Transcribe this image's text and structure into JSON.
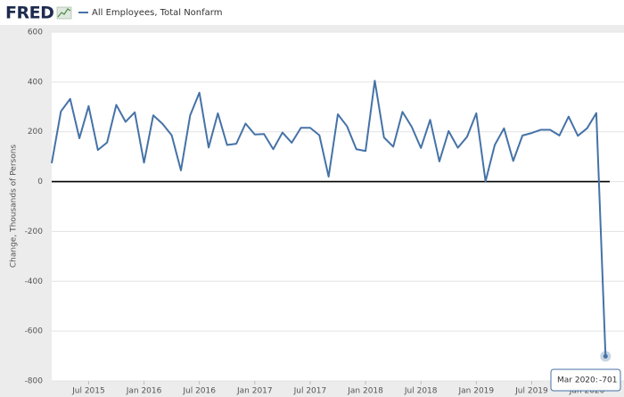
{
  "logo": "FRED",
  "chart_data": {
    "type": "line",
    "y_label": "Change, Thousands of Persons",
    "x": [
      "2015-03",
      "2015-04",
      "2015-05",
      "2015-06",
      "2015-07",
      "2015-08",
      "2015-09",
      "2015-10",
      "2015-11",
      "2015-12",
      "2016-01",
      "2016-02",
      "2016-03",
      "2016-04",
      "2016-05",
      "2016-06",
      "2016-07",
      "2016-08",
      "2016-09",
      "2016-10",
      "2016-11",
      "2016-12",
      "2017-01",
      "2017-02",
      "2017-03",
      "2017-04",
      "2017-05",
      "2017-06",
      "2017-07",
      "2017-08",
      "2017-09",
      "2017-10",
      "2017-11",
      "2017-12",
      "2018-01",
      "2018-02",
      "2018-03",
      "2018-04",
      "2018-05",
      "2018-06",
      "2018-07",
      "2018-08",
      "2018-09",
      "2018-10",
      "2018-11",
      "2018-12",
      "2019-01",
      "2019-02",
      "2019-03",
      "2019-04",
      "2019-05",
      "2019-06",
      "2019-07",
      "2019-08",
      "2019-09",
      "2019-10",
      "2019-11",
      "2019-12",
      "2020-01",
      "2020-02",
      "2020-03"
    ],
    "series": [
      {
        "name": "All Employees, Total Nonfarm",
        "color": "#4572a7",
        "values": [
          74,
          282,
          332,
          174,
          303,
          127,
          157,
          308,
          240,
          278,
          76,
          266,
          232,
          186,
          45,
          266,
          357,
          137,
          274,
          147,
          152,
          233,
          189,
          191,
          130,
          197,
          156,
          216,
          216,
          186,
          20,
          270,
          222,
          130,
          123,
          405,
          177,
          140,
          280,
          220,
          135,
          248,
          81,
          203,
          136,
          180,
          274,
          1,
          147,
          214,
          83,
          185,
          195,
          208,
          208,
          185,
          261,
          184,
          214,
          275,
          -701
        ]
      }
    ],
    "ylim": [
      -800,
      600
    ],
    "yticks": [
      600,
      400,
      200,
      0,
      -200,
      -400,
      -600,
      -800
    ],
    "xlim": [
      "2015-03",
      "2020-05"
    ],
    "xticks": [
      {
        "value": "2015-07",
        "label": "Jul 2015"
      },
      {
        "value": "2016-01",
        "label": "Jan 2016"
      },
      {
        "value": "2016-07",
        "label": "Jul 2016"
      },
      {
        "value": "2017-01",
        "label": "Jan 2017"
      },
      {
        "value": "2017-07",
        "label": "Jul 2017"
      },
      {
        "value": "2018-01",
        "label": "Jan 2018"
      },
      {
        "value": "2018-07",
        "label": "Jul 2018"
      },
      {
        "value": "2019-01",
        "label": "Jan 2019"
      },
      {
        "value": "2019-07",
        "label": "Jul 2019"
      },
      {
        "value": "2020-01",
        "label": "Jan 2020"
      }
    ],
    "grid": true,
    "zero_line": true,
    "tooltip": {
      "label": "Mar 2020:",
      "point": 60
    }
  }
}
